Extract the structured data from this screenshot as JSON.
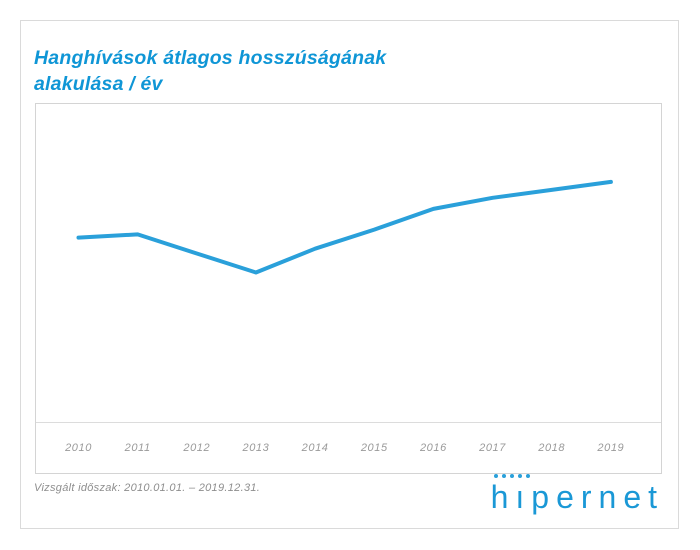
{
  "card": {
    "title_lines": [
      "Hanghívások átlagos hosszúságának",
      "alakulása / év"
    ]
  },
  "chart_data": {
    "type": "line",
    "title": "Hanghívások átlagos hosszúságának alakulása / év",
    "categories": [
      "2010",
      "2011",
      "2012",
      "2013",
      "2014",
      "2015",
      "2016",
      "2017",
      "2018",
      "2019"
    ],
    "values": [
      58,
      59,
      53,
      47,
      54.5,
      60.5,
      67,
      70.5,
      73,
      75.5
    ],
    "xlabel": "",
    "ylabel": "",
    "ylim": [
      0,
      100
    ],
    "y_axis_visible": false,
    "grid": false,
    "legend": false,
    "line_color": "#2aa0da"
  },
  "footer": {
    "period_label": "Vizsgált időszak: 2010.01.01. – 2019.12.31."
  },
  "logo": {
    "text": "hipernet",
    "dots_count": 5,
    "color": "#1a98d6"
  },
  "colors": {
    "title": "#0f96d6",
    "line": "#2aa0da",
    "axis_label": "#9a9a9a",
    "border": "#dadada"
  }
}
